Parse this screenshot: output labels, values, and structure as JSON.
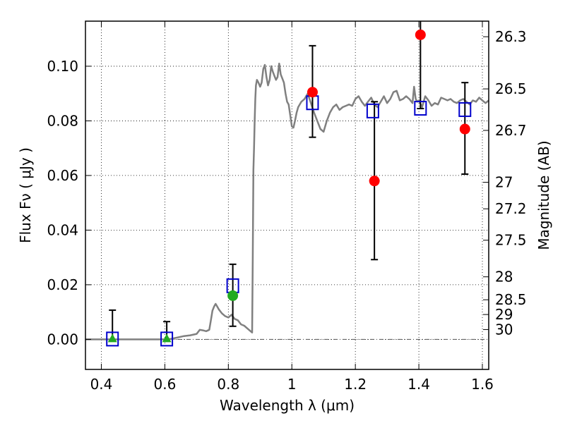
{
  "chart_data": {
    "type": "scatter",
    "xlabel": "Wavelength  λ (μm)",
    "ylabel": "Flux  Fν  ( μJy )",
    "y2label": "Magnitude (AB)",
    "xlim": [
      0.35,
      1.62
    ],
    "ylim": [
      -0.011,
      0.1165
    ],
    "x_ticks": [
      0.4,
      0.6,
      0.8,
      1.0,
      1.2,
      1.4,
      1.6
    ],
    "x_tick_labels": [
      "0.4",
      "0.6",
      "0.8",
      "1",
      "1.2",
      "1.4",
      "1.6"
    ],
    "y_ticks": [
      0.0,
      0.02,
      0.04,
      0.06,
      0.08,
      0.1
    ],
    "y_tick_labels": [
      "0.00",
      "0.02",
      "0.04",
      "0.06",
      "0.08",
      "0.10"
    ],
    "right_axis_ticks": [
      {
        "label": "26.3",
        "flux": 0.1108
      },
      {
        "label": "26.5",
        "flux": 0.0917
      },
      {
        "label": "26.7",
        "flux": 0.0765
      },
      {
        "label": "27",
        "flux": 0.0575
      },
      {
        "label": "27.2",
        "flux": 0.0478
      },
      {
        "label": "27.5",
        "flux": 0.0363
      },
      {
        "label": "28",
        "flux": 0.0229
      },
      {
        "label": "28.5",
        "flux": 0.0145
      },
      {
        "label": "29",
        "flux": 0.0091
      },
      {
        "label": "30",
        "flux": 0.0036
      }
    ],
    "grid": true,
    "zero_line": true,
    "colors": {
      "model": "#808080",
      "model_photometry": "#0000cc",
      "detection": "#ff0000",
      "optical_detection": "#22aa22",
      "upper_limit": "#22aa22",
      "errorbar": "#000000"
    },
    "model_sed": {
      "x": [
        0.35,
        0.5,
        0.6,
        0.62,
        0.64,
        0.66,
        0.68,
        0.7,
        0.71,
        0.72,
        0.73,
        0.74,
        0.745,
        0.75,
        0.755,
        0.76,
        0.765,
        0.77,
        0.78,
        0.79,
        0.8,
        0.81,
        0.82,
        0.83,
        0.84,
        0.85,
        0.86,
        0.87,
        0.875,
        0.877,
        0.879,
        0.881,
        0.883,
        0.885,
        0.887,
        0.89,
        0.895,
        0.9,
        0.905,
        0.91,
        0.915,
        0.92,
        0.925,
        0.93,
        0.935,
        0.94,
        0.945,
        0.95,
        0.955,
        0.96,
        0.965,
        0.97,
        0.975,
        0.98,
        0.985,
        0.99,
        0.995,
        1.0,
        1.005,
        1.01,
        1.015,
        1.02,
        1.03,
        1.04,
        1.05,
        1.06,
        1.07,
        1.08,
        1.09,
        1.1,
        1.11,
        1.12,
        1.13,
        1.14,
        1.15,
        1.16,
        1.17,
        1.18,
        1.19,
        1.2,
        1.21,
        1.22,
        1.23,
        1.24,
        1.25,
        1.26,
        1.27,
        1.28,
        1.29,
        1.3,
        1.31,
        1.32,
        1.33,
        1.34,
        1.35,
        1.36,
        1.37,
        1.38,
        1.385,
        1.39,
        1.395,
        1.4,
        1.41,
        1.42,
        1.43,
        1.44,
        1.45,
        1.46,
        1.47,
        1.48,
        1.49,
        1.5,
        1.51,
        1.52,
        1.53,
        1.54,
        1.55,
        1.56,
        1.57,
        1.58,
        1.59,
        1.6,
        1.61,
        1.62
      ],
      "y": [
        0.0,
        0.0,
        0.0,
        0.0002,
        0.0007,
        0.0012,
        0.0015,
        0.002,
        0.0035,
        0.0033,
        0.003,
        0.0035,
        0.007,
        0.0105,
        0.012,
        0.013,
        0.012,
        0.011,
        0.0095,
        0.0085,
        0.008,
        0.009,
        0.0075,
        0.007,
        0.0055,
        0.005,
        0.004,
        0.003,
        0.0025,
        0.03,
        0.062,
        0.07,
        0.08,
        0.088,
        0.093,
        0.095,
        0.094,
        0.0925,
        0.094,
        0.099,
        0.1005,
        0.096,
        0.093,
        0.095,
        0.1,
        0.098,
        0.0965,
        0.095,
        0.096,
        0.101,
        0.097,
        0.0955,
        0.094,
        0.09,
        0.087,
        0.086,
        0.082,
        0.078,
        0.0775,
        0.08,
        0.083,
        0.085,
        0.087,
        0.088,
        0.09,
        0.0865,
        0.083,
        0.08,
        0.077,
        0.076,
        0.08,
        0.083,
        0.085,
        0.086,
        0.084,
        0.085,
        0.0855,
        0.086,
        0.0855,
        0.088,
        0.089,
        0.087,
        0.0855,
        0.087,
        0.0885,
        0.086,
        0.085,
        0.087,
        0.089,
        0.0865,
        0.088,
        0.0905,
        0.091,
        0.0875,
        0.088,
        0.089,
        0.088,
        0.0865,
        0.0925,
        0.088,
        0.087,
        0.0875,
        0.085,
        0.089,
        0.0875,
        0.0855,
        0.0865,
        0.086,
        0.0885,
        0.088,
        0.0875,
        0.088,
        0.087,
        0.0865,
        0.0875,
        0.088,
        0.087,
        0.086,
        0.0875,
        0.087,
        0.0885,
        0.0875,
        0.0865,
        0.0875
      ]
    },
    "model_photometry": [
      {
        "x": 0.435,
        "y": 0.0
      },
      {
        "x": 0.606,
        "y": 0.0
      },
      {
        "x": 0.814,
        "y": 0.0195
      },
      {
        "x": 1.065,
        "y": 0.0865
      },
      {
        "x": 1.255,
        "y": 0.0835
      },
      {
        "x": 1.405,
        "y": 0.0845
      },
      {
        "x": 1.545,
        "y": 0.084
      }
    ],
    "observed": [
      {
        "x": 0.435,
        "y": 0.0,
        "err_low": 0.0,
        "err_high": 0.0107,
        "kind": "upper_limit"
      },
      {
        "x": 0.606,
        "y": 0.0,
        "err_low": 0.0,
        "err_high": 0.0065,
        "kind": "upper_limit"
      },
      {
        "x": 0.814,
        "y": 0.016,
        "err_low": 0.0112,
        "err_high": 0.0115,
        "kind": "optical_detection"
      },
      {
        "x": 1.065,
        "y": 0.0905,
        "err_low": 0.0165,
        "err_high": 0.017,
        "kind": "detection"
      },
      {
        "x": 1.26,
        "y": 0.058,
        "err_low": 0.0288,
        "err_high": 0.029,
        "kind": "detection"
      },
      {
        "x": 1.405,
        "y": 0.1115,
        "err_low": 0.027,
        "err_high": 0.006,
        "kind": "detection"
      },
      {
        "x": 1.545,
        "y": 0.077,
        "err_low": 0.0165,
        "err_high": 0.017,
        "kind": "detection"
      }
    ]
  }
}
